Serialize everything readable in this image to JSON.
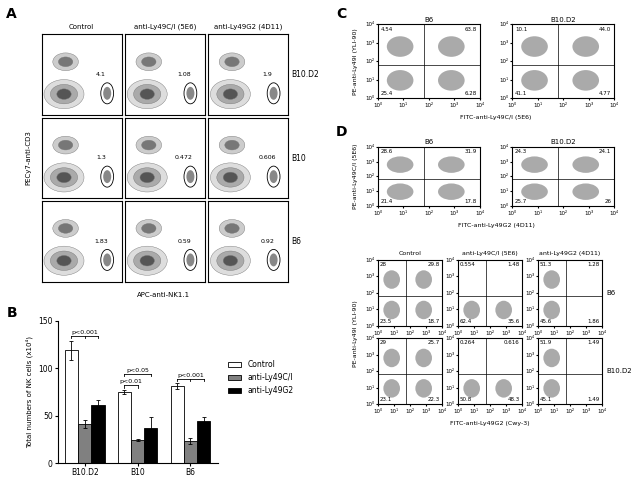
{
  "panel_labels": [
    "A",
    "B",
    "C",
    "D"
  ],
  "panel_A": {
    "columns": [
      "Control",
      "anti-Ly49C/I (5E6)",
      "anti-Ly49G2 (4D11)"
    ],
    "rows": [
      "B10.D2",
      "B10",
      "B6"
    ],
    "xlabel": "APC-anti-NK1.1",
    "ylabel": "PECy7-anti-CD3",
    "gate_values": [
      [
        4.1,
        1.08,
        1.9
      ],
      [
        1.3,
        0.472,
        0.606
      ],
      [
        1.83,
        0.59,
        0.92
      ]
    ],
    "tick_labels": false
  },
  "chart_data": {
    "type": "bar",
    "categories": [
      "B10.D2",
      "B10",
      "B6"
    ],
    "series": [
      {
        "name": "Control",
        "color": "#ffffff",
        "values": [
          119,
          75,
          81
        ],
        "errors": [
          10,
          2,
          3
        ]
      },
      {
        "name": "anti-Ly49C/I",
        "color": "#808080",
        "values": [
          41,
          24,
          23
        ],
        "errors": [
          4,
          1,
          3
        ]
      },
      {
        "name": "anti-Ly49G2",
        "color": "#000000",
        "values": [
          61,
          37,
          44
        ],
        "errors": [
          6,
          12,
          5
        ]
      }
    ],
    "ylabel": "Total numbers of NK cells (x10⁴)",
    "ylim": [
      0,
      150
    ],
    "yticks": [
      0,
      50,
      100,
      150
    ],
    "legend": "right",
    "annotations": [
      {
        "text": "p<0.001",
        "category": "B10.D2",
        "series": [
          "Control",
          "anti-Ly49C/I",
          "anti-Ly49G2"
        ]
      },
      {
        "text": "p<0.01",
        "category": "B10",
        "series": [
          "Control",
          "anti-Ly49C/I"
        ]
      },
      {
        "text": "p<0.05",
        "category": "B10",
        "series": [
          "Control",
          "anti-Ly49G2"
        ]
      },
      {
        "text": "p<0.001",
        "category": "B6",
        "series": [
          "Control",
          "anti-Ly49C/I",
          "anti-Ly49G2"
        ]
      }
    ]
  },
  "flow_axes": {
    "log": true,
    "xlim": [
      1,
      10000
    ],
    "ylim": [
      1,
      10000
    ],
    "xticks": [
      {
        "value": 1,
        "label": "10⁰"
      },
      {
        "value": 10,
        "label": "10¹"
      },
      {
        "value": 100,
        "label": "10²"
      },
      {
        "value": 1000,
        "label": "10³"
      },
      {
        "value": 10000,
        "label": "10⁴"
      }
    ],
    "yticks": [
      {
        "value": 1,
        "label": "10⁰"
      },
      {
        "value": 10,
        "label": "10¹"
      },
      {
        "value": 100,
        "label": "10²"
      },
      {
        "value": 1000,
        "label": "10³"
      },
      {
        "value": 10000,
        "label": "10⁴"
      }
    ]
  },
  "panel_C": {
    "xlabel": "FITC-anti-Ly49C/I (5E6)",
    "ylabel": "PE-anti-Ly49I (YLI-90)",
    "plots": [
      {
        "title": "B6",
        "quadrants": {
          "UL": 4.54,
          "UR": 63.8,
          "LL": 25.4,
          "LR": 6.28
        }
      },
      {
        "title": "B10.D2",
        "quadrants": {
          "UL": 10.1,
          "UR": 44.0,
          "LL": 41.1,
          "LR": 4.77
        }
      }
    ]
  },
  "panel_D": {
    "top": {
      "xlabel": "FITC-anti-Ly49G2 (4D11)",
      "ylabel": "PE-anti-Ly49C/I (5E6)",
      "plots": [
        {
          "title": "B6",
          "quadrants": {
            "UL": 28.6,
            "UR": 31.9,
            "LL": 21.4,
            "LR": 17.8
          }
        },
        {
          "title": "B10.D2",
          "quadrants": {
            "UL": 24.3,
            "UR": 24.1,
            "LL": 25.7,
            "LR": 26
          }
        }
      ]
    },
    "bottom": {
      "columns": [
        "Control",
        "anti-Ly49C/I (5E6)",
        "anti-Ly49G2 (4D11)"
      ],
      "rows": [
        "B6",
        "B10.D2"
      ],
      "xlabel": "FITC-anti-Ly49G2 (Cwy-3)",
      "ylabel": "PE-anti-Ly49I (YLI-90)",
      "quadrants": [
        [
          {
            "UL": 28,
            "UR": 29.8,
            "LL": 23.5,
            "LR": 18.7
          },
          {
            "UL": 0.554,
            "UR": 1.48,
            "LL": 62.4,
            "LR": 35.6
          },
          {
            "UL": 51.3,
            "UR": 1.28,
            "LL": 45.6,
            "LR": 1.86
          }
        ],
        [
          {
            "UL": 29,
            "UR": 25.7,
            "LL": 23.1,
            "LR": 22.3
          },
          {
            "UL": 0.264,
            "UR": 0.616,
            "LL": 50.8,
            "LR": 48.3
          },
          {
            "UL": 51.9,
            "UR": 1.49,
            "LL": 45.1,
            "LR": 1.49
          }
        ]
      ]
    }
  }
}
